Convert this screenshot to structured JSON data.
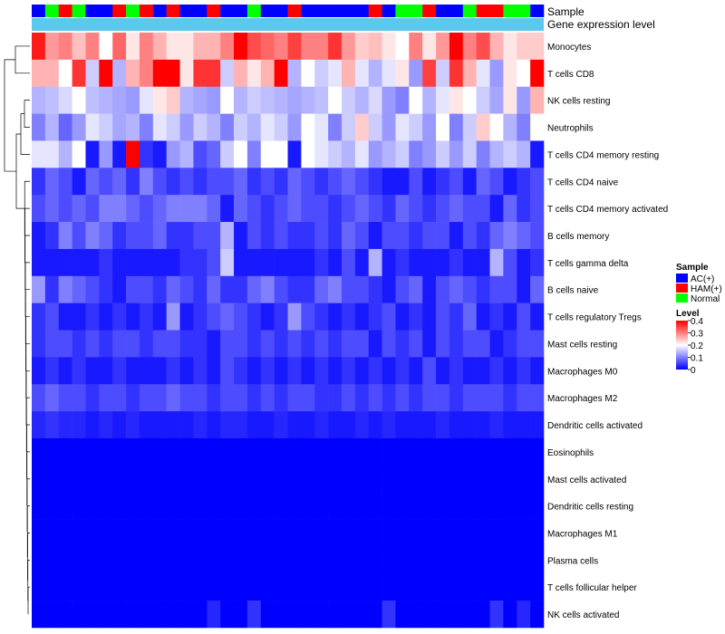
{
  "chart_data": {
    "type": "heatmap",
    "annotation_tracks": [
      {
        "name": "Sample",
        "values": [
          "AC(+)",
          "Normal",
          "HAM(+)",
          "Normal",
          "AC(+)",
          "AC(+)",
          "HAM(+)",
          "Normal",
          "HAM(+)",
          "AC(+)",
          "HAM(+)",
          "AC(+)",
          "AC(+)",
          "HAM(+)",
          "AC(+)",
          "AC(+)",
          "Normal",
          "AC(+)",
          "AC(+)",
          "HAM(+)",
          "AC(+)",
          "AC(+)",
          "AC(+)",
          "AC(+)",
          "AC(+)",
          "HAM(+)",
          "AC(+)",
          "Normal",
          "Normal",
          "HAM(+)",
          "AC(+)",
          "AC(+)",
          "Normal",
          "HAM(+)",
          "HAM(+)",
          "Normal",
          "Normal",
          "AC(+)"
        ]
      },
      {
        "name": "Gene expression level",
        "values": [
          "",
          "",
          "",
          "",
          "",
          "",
          "",
          "",
          "",
          "",
          "",
          "",
          "",
          "",
          "",
          "",
          "",
          "",
          "",
          "",
          "",
          "",
          "",
          "",
          "",
          "",
          "",
          "",
          "",
          "",
          "",
          "",
          "",
          "",
          "",
          "",
          "",
          ""
        ]
      }
    ],
    "rows": [
      "Monocytes",
      "T cells CD8",
      "NK cells resting",
      "Neutrophils",
      "T cells CD4 memory resting",
      "T cells CD4 naive",
      "T cells CD4 memory activated",
      "B cells memory",
      "T cells gamma delta",
      "B cells naive",
      "T cells regulatory  Tregs",
      "Mast cells resting",
      "Macrophages M0",
      "Macrophages M2",
      "Dendritic cells activated",
      "Eosinophils",
      "Mast cells activated",
      "Dendritic cells resting",
      "Macrophages M1",
      "Plasma cells",
      "T cells follicular helper",
      "NK cells activated"
    ],
    "values": [
      [
        0.38,
        0.28,
        0.3,
        0.25,
        0.3,
        0.2,
        0.32,
        0.22,
        0.3,
        0.26,
        0.22,
        0.22,
        0.26,
        0.26,
        0.3,
        0.4,
        0.34,
        0.32,
        0.3,
        0.35,
        0.3,
        0.3,
        0.36,
        0.28,
        0.24,
        0.25,
        0.22,
        0.2,
        0.3,
        0.22,
        0.28,
        0.4,
        0.3,
        0.34,
        0.26,
        0.22,
        0.24,
        0.24
      ],
      [
        0.26,
        0.26,
        0.2,
        0.36,
        0.16,
        0.4,
        0.14,
        0.26,
        0.3,
        0.4,
        0.4,
        0.22,
        0.36,
        0.36,
        0.16,
        0.26,
        0.22,
        0.26,
        0.4,
        0.14,
        0.2,
        0.16,
        0.18,
        0.26,
        0.18,
        0.14,
        0.18,
        0.22,
        0.12,
        0.35,
        0.16,
        0.36,
        0.26,
        0.18,
        0.12,
        0.22,
        0.2,
        0.4
      ],
      [
        0.14,
        0.15,
        0.17,
        0.2,
        0.15,
        0.14,
        0.13,
        0.12,
        0.18,
        0.22,
        0.24,
        0.14,
        0.13,
        0.12,
        0.2,
        0.14,
        0.16,
        0.15,
        0.14,
        0.13,
        0.14,
        0.15,
        0.2,
        0.16,
        0.14,
        0.17,
        0.12,
        0.1,
        0.2,
        0.14,
        0.18,
        0.22,
        0.2,
        0.16,
        0.13,
        0.22,
        0.12,
        0.26
      ],
      [
        0.1,
        0.14,
        0.08,
        0.12,
        0.18,
        0.16,
        0.13,
        0.14,
        0.1,
        0.18,
        0.16,
        0.12,
        0.16,
        0.14,
        0.1,
        0.16,
        0.14,
        0.18,
        0.16,
        0.12,
        0.2,
        0.18,
        0.1,
        0.16,
        0.24,
        0.16,
        0.12,
        0.18,
        0.16,
        0.12,
        0.2,
        0.1,
        0.16,
        0.24,
        0.2,
        0.14,
        0.1,
        0.2
      ],
      [
        0.18,
        0.18,
        0.14,
        0.2,
        0.02,
        0.12,
        0.02,
        0.4,
        0.04,
        0.02,
        0.12,
        0.14,
        0.06,
        0.08,
        0.16,
        0.2,
        0.1,
        0.2,
        0.2,
        0.02,
        0.2,
        0.18,
        0.16,
        0.14,
        0.18,
        0.12,
        0.14,
        0.16,
        0.1,
        0.12,
        0.16,
        0.12,
        0.16,
        0.1,
        0.14,
        0.16,
        0.14,
        0.02
      ],
      [
        0.04,
        0.08,
        0.06,
        0.02,
        0.08,
        0.06,
        0.08,
        0.04,
        0.1,
        0.06,
        0.04,
        0.06,
        0.04,
        0.06,
        0.06,
        0.08,
        0.04,
        0.06,
        0.04,
        0.08,
        0.06,
        0.04,
        0.06,
        0.08,
        0.06,
        0.04,
        0.02,
        0.02,
        0.06,
        0.02,
        0.04,
        0.06,
        0.02,
        0.08,
        0.06,
        0.02,
        0.04,
        0.06
      ],
      [
        0.06,
        0.08,
        0.06,
        0.08,
        0.06,
        0.1,
        0.1,
        0.08,
        0.06,
        0.08,
        0.1,
        0.1,
        0.1,
        0.08,
        0.02,
        0.08,
        0.06,
        0.04,
        0.06,
        0.08,
        0.06,
        0.06,
        0.04,
        0.06,
        0.08,
        0.06,
        0.04,
        0.08,
        0.06,
        0.04,
        0.06,
        0.08,
        0.06,
        0.06,
        0.02,
        0.08,
        0.04,
        0.06
      ],
      [
        0.02,
        0.04,
        0.1,
        0.06,
        0.1,
        0.08,
        0.04,
        0.06,
        0.06,
        0.08,
        0.04,
        0.04,
        0.06,
        0.06,
        0.14,
        0.02,
        0.06,
        0.04,
        0.06,
        0.04,
        0.04,
        0.06,
        0.04,
        0.08,
        0.06,
        0.02,
        0.06,
        0.06,
        0.04,
        0.06,
        0.06,
        0.02,
        0.06,
        0.04,
        0.08,
        0.1,
        0.08,
        0.06
      ],
      [
        0.02,
        0.02,
        0.02,
        0.02,
        0.02,
        0.04,
        0.02,
        0.02,
        0.02,
        0.02,
        0.02,
        0.04,
        0.04,
        0.06,
        0.16,
        0.02,
        0.02,
        0.02,
        0.02,
        0.02,
        0.02,
        0.04,
        0.02,
        0.06,
        0.02,
        0.14,
        0.02,
        0.04,
        0.02,
        0.02,
        0.02,
        0.04,
        0.02,
        0.02,
        0.14,
        0.06,
        0.02,
        0.04
      ],
      [
        0.12,
        0.04,
        0.1,
        0.08,
        0.06,
        0.04,
        0.02,
        0.06,
        0.06,
        0.04,
        0.08,
        0.06,
        0.04,
        0.08,
        0.04,
        0.04,
        0.08,
        0.1,
        0.06,
        0.04,
        0.04,
        0.08,
        0.1,
        0.06,
        0.06,
        0.04,
        0.02,
        0.06,
        0.08,
        0.02,
        0.06,
        0.08,
        0.06,
        0.04,
        0.06,
        0.06,
        0.02,
        0.08
      ],
      [
        0.04,
        0.06,
        0.02,
        0.02,
        0.04,
        0.02,
        0.04,
        0.02,
        0.04,
        0.02,
        0.12,
        0.02,
        0.04,
        0.06,
        0.08,
        0.06,
        0.04,
        0.02,
        0.04,
        0.12,
        0.06,
        0.04,
        0.02,
        0.04,
        0.02,
        0.04,
        0.06,
        0.02,
        0.04,
        0.02,
        0.06,
        0.04,
        0.08,
        0.02,
        0.04,
        0.02,
        0.06,
        0.02
      ],
      [
        0.04,
        0.06,
        0.06,
        0.04,
        0.06,
        0.04,
        0.06,
        0.06,
        0.04,
        0.06,
        0.06,
        0.04,
        0.04,
        0.02,
        0.06,
        0.06,
        0.04,
        0.06,
        0.04,
        0.06,
        0.04,
        0.06,
        0.04,
        0.06,
        0.06,
        0.02,
        0.06,
        0.04,
        0.06,
        0.02,
        0.06,
        0.04,
        0.06,
        0.06,
        0.02,
        0.04,
        0.06,
        0.06
      ],
      [
        0.02,
        0.04,
        0.02,
        0.04,
        0.02,
        0.02,
        0.04,
        0.02,
        0.02,
        0.02,
        0.04,
        0.02,
        0.04,
        0.02,
        0.06,
        0.04,
        0.02,
        0.04,
        0.02,
        0.04,
        0.02,
        0.04,
        0.02,
        0.04,
        0.02,
        0.04,
        0.02,
        0.04,
        0.02,
        0.06,
        0.02,
        0.04,
        0.02,
        0.02,
        0.04,
        0.02,
        0.04,
        0.02
      ],
      [
        0.06,
        0.08,
        0.06,
        0.06,
        0.04,
        0.06,
        0.06,
        0.04,
        0.06,
        0.06,
        0.08,
        0.06,
        0.06,
        0.04,
        0.06,
        0.06,
        0.04,
        0.06,
        0.04,
        0.06,
        0.06,
        0.04,
        0.04,
        0.06,
        0.04,
        0.06,
        0.04,
        0.06,
        0.04,
        0.06,
        0.06,
        0.04,
        0.06,
        0.06,
        0.06,
        0.04,
        0.06,
        0.06
      ],
      [
        0.03,
        0.04,
        0.03,
        0.03,
        0.02,
        0.03,
        0.02,
        0.03,
        0.02,
        0.02,
        0.02,
        0.02,
        0.03,
        0.02,
        0.03,
        0.03,
        0.02,
        0.02,
        0.03,
        0.02,
        0.02,
        0.03,
        0.02,
        0.02,
        0.03,
        0.02,
        0.03,
        0.02,
        0.02,
        0.02,
        0.03,
        0.02,
        0.02,
        0.02,
        0.03,
        0.02,
        0.02,
        0.02
      ],
      [
        0,
        0,
        0,
        0,
        0,
        0,
        0,
        0,
        0,
        0,
        0,
        0,
        0,
        0,
        0,
        0,
        0,
        0,
        0,
        0,
        0,
        0,
        0,
        0,
        0,
        0,
        0,
        0,
        0,
        0,
        0,
        0,
        0,
        0,
        0,
        0,
        0,
        0
      ],
      [
        0,
        0,
        0,
        0,
        0,
        0,
        0,
        0,
        0,
        0,
        0,
        0,
        0,
        0,
        0,
        0,
        0,
        0,
        0,
        0,
        0,
        0,
        0,
        0,
        0,
        0,
        0,
        0,
        0,
        0,
        0,
        0,
        0,
        0,
        0,
        0,
        0,
        0
      ],
      [
        0,
        0,
        0,
        0,
        0,
        0,
        0,
        0,
        0,
        0,
        0,
        0,
        0,
        0,
        0,
        0,
        0,
        0,
        0,
        0,
        0,
        0,
        0,
        0,
        0,
        0,
        0,
        0,
        0,
        0,
        0,
        0,
        0,
        0,
        0,
        0,
        0,
        0
      ],
      [
        0,
        0,
        0,
        0,
        0,
        0,
        0,
        0,
        0,
        0,
        0,
        0,
        0,
        0,
        0,
        0,
        0,
        0,
        0,
        0,
        0,
        0,
        0,
        0,
        0,
        0,
        0,
        0,
        0,
        0,
        0,
        0,
        0,
        0,
        0,
        0,
        0,
        0
      ],
      [
        0,
        0,
        0,
        0,
        0,
        0,
        0,
        0,
        0,
        0,
        0,
        0,
        0,
        0,
        0,
        0,
        0,
        0,
        0,
        0,
        0,
        0,
        0,
        0,
        0,
        0,
        0,
        0,
        0,
        0,
        0,
        0,
        0,
        0,
        0,
        0,
        0,
        0
      ],
      [
        0,
        0,
        0,
        0,
        0,
        0,
        0,
        0,
        0,
        0,
        0,
        0,
        0,
        0,
        0,
        0,
        0,
        0,
        0,
        0,
        0,
        0,
        0,
        0,
        0,
        0,
        0,
        0,
        0,
        0,
        0,
        0,
        0,
        0,
        0,
        0,
        0,
        0
      ],
      [
        0,
        0,
        0,
        0,
        0,
        0,
        0,
        0,
        0,
        0,
        0,
        0,
        0,
        0.03,
        0,
        0,
        0.04,
        0,
        0,
        0,
        0,
        0,
        0,
        0,
        0,
        0,
        0.04,
        0,
        0,
        0,
        0,
        0,
        0,
        0,
        0.04,
        0,
        0.03,
        0
      ]
    ],
    "color_scale": {
      "min": 0,
      "mid": 0.2,
      "max": 0.4,
      "low": "#0000FF",
      "middle": "#FFFFFF",
      "high": "#FF0000"
    },
    "legends": {
      "sample": {
        "title": "Sample",
        "entries": [
          {
            "label": "AC(+)",
            "color": "#0000FF"
          },
          {
            "label": "HAM(+)",
            "color": "#FF0000"
          },
          {
            "label": "Normal",
            "color": "#00FF00"
          }
        ]
      },
      "level": {
        "title": "Level",
        "ticks": [
          "0.4",
          "0.3",
          "0.2",
          "0.1",
          "0"
        ]
      }
    },
    "gene_expression_color": "#5BC8EC",
    "row_dendrogram": true,
    "grid": false
  }
}
